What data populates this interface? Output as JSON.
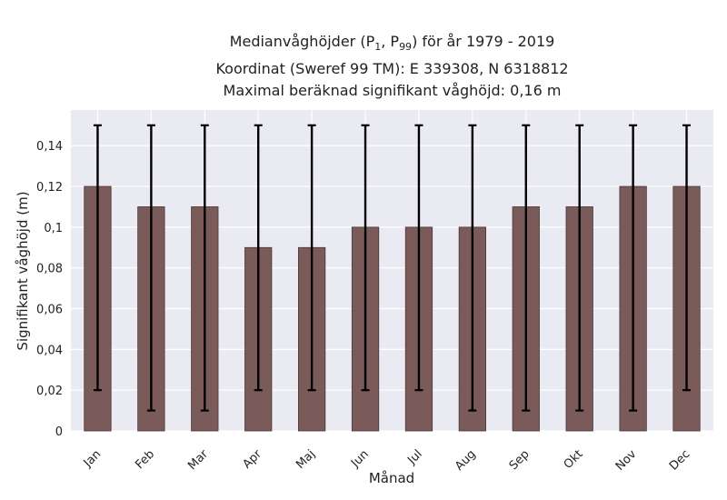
{
  "chart_data": {
    "type": "bar",
    "title_lines": [
      "Medianvåghöjder (P",
      "Koordinat (Sweref 99 TM): E 339308, N 6318812",
      "Maximal beräknad signifikant våghöjd: 0,16 m"
    ],
    "title_parts": {
      "p1_sub": "1",
      "p99_sub": "99",
      "after": ") för år 1979 - 2019"
    },
    "xlabel": "Månad",
    "ylabel": "Signifikant våghöjd (m)",
    "categories": [
      "Jan",
      "Feb",
      "Mar",
      "Apr",
      "Maj",
      "Jun",
      "Jul",
      "Aug",
      "Sep",
      "Okt",
      "Nov",
      "Dec"
    ],
    "values": [
      0.12,
      0.11,
      0.11,
      0.09,
      0.09,
      0.1,
      0.1,
      0.1,
      0.11,
      0.11,
      0.12,
      0.12
    ],
    "error_low": [
      0.02,
      0.01,
      0.01,
      0.02,
      0.02,
      0.02,
      0.02,
      0.01,
      0.01,
      0.01,
      0.01,
      0.02
    ],
    "error_high": [
      0.15,
      0.15,
      0.15,
      0.15,
      0.15,
      0.15,
      0.15,
      0.15,
      0.15,
      0.15,
      0.15,
      0.15
    ],
    "yticks": [
      "0",
      "0,02",
      "0,04",
      "0,06",
      "0,08",
      "0,1",
      "0,12",
      "0,14"
    ],
    "ytick_values": [
      0,
      0.02,
      0.04,
      0.06,
      0.08,
      0.1,
      0.12,
      0.14
    ],
    "ylim": [
      0,
      0.1575
    ],
    "grid": true,
    "colors": {
      "bar": "#7b5a5a",
      "bar_edge": "#4a3838",
      "error": "#000000",
      "plot_bg": "#eaeaf2",
      "grid": "#ffffff"
    }
  }
}
